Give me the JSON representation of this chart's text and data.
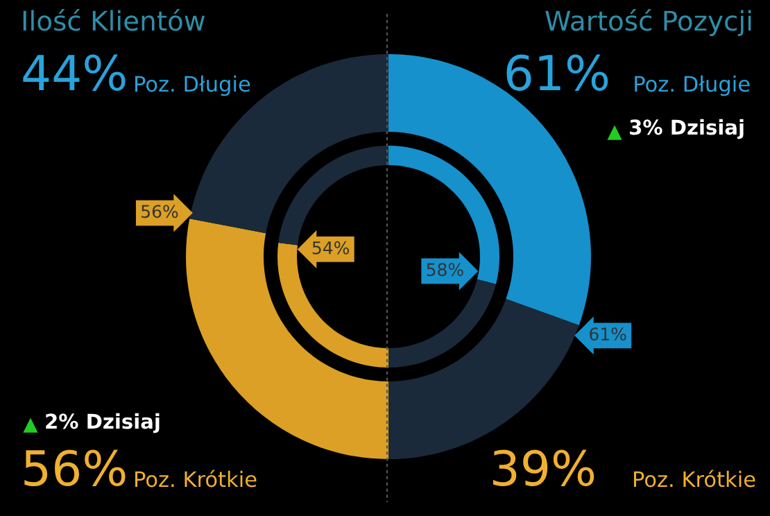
{
  "chart_data": {
    "type": "donut",
    "categories": [
      "Poz. Długie",
      "Poz. Krótkie",
      "Poz. Krótkie",
      "Poz. Długie"
    ],
    "series": [
      {
        "values": [
          61,
          39,
          56,
          44
        ],
        "colors": [
          "#1691cc",
          "#1b2a3a",
          "#dba025",
          "#1b2a3a"
        ],
        "value_labels": [
          "61%",
          null,
          "56%",
          null
        ]
      },
      {
        "values": [
          58,
          42,
          54,
          46
        ],
        "colors": [
          "#1691cc",
          "#1b2a3a",
          "#dba025",
          "#1b2a3a"
        ],
        "value_labels": [
          "58%",
          null,
          "54%",
          null
        ]
      }
    ],
    "annotations": [
      "Ilość Klientów",
      "Wartość Pozycji",
      "61%",
      "39%",
      "56%",
      "44%",
      "3% Dzisiaj",
      "2% Dzisiaj"
    ]
  }
}
